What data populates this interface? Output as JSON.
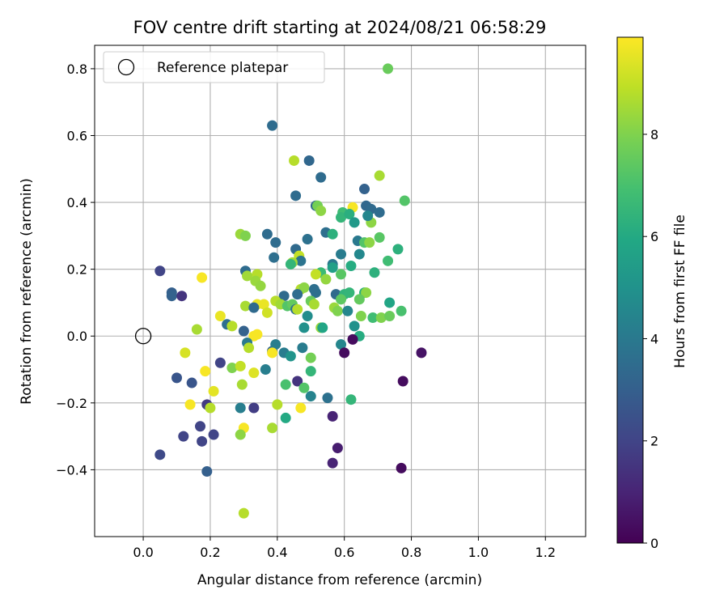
{
  "chart_data": {
    "type": "scatter",
    "title": "FOV centre drift starting at 2024/08/21 06:58:29",
    "xlabel": "Angular distance from reference (arcmin)",
    "ylabel": "Rotation from reference (arcmin)",
    "xlim": [
      -0.145,
      1.32
    ],
    "ylim": [
      -0.6,
      0.87
    ],
    "xticks": [
      0.0,
      0.2,
      0.4,
      0.6,
      0.8,
      1.0,
      1.2
    ],
    "yticks": [
      -0.4,
      -0.2,
      0.0,
      0.2,
      0.4,
      0.6,
      0.8
    ],
    "xtick_labels": [
      "0.0",
      "0.2",
      "0.4",
      "0.6",
      "0.8",
      "1.0",
      "1.2"
    ],
    "ytick_labels": [
      "−0.4",
      "−0.2",
      "0.0",
      "0.2",
      "0.4",
      "0.6",
      "0.8"
    ],
    "grid": true,
    "legend": {
      "position": "top-left",
      "entries": [
        "Reference platepar"
      ]
    },
    "reference_point": {
      "x": 0.0,
      "y": 0.0,
      "label": "Reference platepar"
    },
    "colorbar": {
      "label": "Hours from first FF file",
      "colormap": "viridis",
      "min": 0,
      "max": 9.9,
      "ticks": [
        0,
        2,
        4,
        6,
        8
      ],
      "tick_labels": [
        "0",
        "2",
        "4",
        "6",
        "8"
      ]
    },
    "series": [
      {
        "color_by": "hours",
        "points": [
          [
            0.385,
            0.63,
            3.5
          ],
          [
            0.73,
            0.8,
            7.6
          ],
          [
            0.45,
            0.525,
            8.8
          ],
          [
            0.495,
            0.525,
            3.3
          ],
          [
            0.53,
            0.475,
            3.5
          ],
          [
            0.705,
            0.48,
            8.6
          ],
          [
            0.455,
            0.42,
            3.5
          ],
          [
            0.78,
            0.405,
            7.2
          ],
          [
            0.515,
            0.39,
            3.3
          ],
          [
            0.52,
            0.39,
            7.8
          ],
          [
            0.66,
            0.44,
            3.1
          ],
          [
            0.665,
            0.39,
            3.3
          ],
          [
            0.68,
            0.38,
            3.4
          ],
          [
            0.705,
            0.37,
            3.5
          ],
          [
            0.625,
            0.385,
            9.8
          ],
          [
            0.53,
            0.375,
            8.2
          ],
          [
            0.595,
            0.37,
            6.8
          ],
          [
            0.59,
            0.355,
            6.5
          ],
          [
            0.615,
            0.365,
            6.2
          ],
          [
            0.63,
            0.34,
            5.3
          ],
          [
            0.68,
            0.34,
            8.2
          ],
          [
            0.67,
            0.36,
            4.5
          ],
          [
            0.37,
            0.305,
            3.5
          ],
          [
            0.545,
            0.31,
            3.6
          ],
          [
            0.565,
            0.305,
            6.3
          ],
          [
            0.29,
            0.305,
            8.4
          ],
          [
            0.305,
            0.3,
            8.0
          ],
          [
            0.395,
            0.28,
            3.5
          ],
          [
            0.49,
            0.29,
            3.7
          ],
          [
            0.64,
            0.285,
            4.0
          ],
          [
            0.66,
            0.28,
            7.2
          ],
          [
            0.675,
            0.28,
            8.2
          ],
          [
            0.705,
            0.295,
            7.3
          ],
          [
            0.76,
            0.26,
            6.3
          ],
          [
            0.455,
            0.26,
            3.4
          ],
          [
            0.59,
            0.245,
            4.1
          ],
          [
            0.645,
            0.245,
            4.6
          ],
          [
            0.39,
            0.235,
            3.6
          ],
          [
            0.465,
            0.24,
            9.0
          ],
          [
            0.47,
            0.225,
            3.8
          ],
          [
            0.445,
            0.22,
            8.5
          ],
          [
            0.44,
            0.215,
            6.5
          ],
          [
            0.73,
            0.225,
            6.8
          ],
          [
            0.565,
            0.215,
            4.0
          ],
          [
            0.565,
            0.205,
            5.6
          ],
          [
            0.62,
            0.21,
            6.1
          ],
          [
            0.69,
            0.19,
            6.3
          ],
          [
            0.53,
            0.19,
            6.7
          ],
          [
            0.515,
            0.185,
            9.0
          ],
          [
            0.59,
            0.185,
            7.3
          ],
          [
            0.05,
            0.195,
            2.0
          ],
          [
            0.175,
            0.175,
            9.8
          ],
          [
            0.305,
            0.195,
            3.5
          ],
          [
            0.34,
            0.185,
            8.8
          ],
          [
            0.31,
            0.18,
            8.5
          ],
          [
            0.335,
            0.165,
            8.4
          ],
          [
            0.35,
            0.15,
            8.3
          ],
          [
            0.47,
            0.14,
            8.8
          ],
          [
            0.48,
            0.145,
            8.2
          ],
          [
            0.51,
            0.14,
            3.6
          ],
          [
            0.545,
            0.17,
            8.3
          ],
          [
            0.42,
            0.12,
            3.4
          ],
          [
            0.46,
            0.125,
            3.5
          ],
          [
            0.515,
            0.13,
            3.6
          ],
          [
            0.575,
            0.125,
            3.4
          ],
          [
            0.6,
            0.125,
            6.4
          ],
          [
            0.615,
            0.13,
            6.5
          ],
          [
            0.66,
            0.13,
            6.2
          ],
          [
            0.665,
            0.13,
            8.2
          ],
          [
            0.645,
            0.11,
            7.5
          ],
          [
            0.59,
            0.11,
            7.4
          ],
          [
            0.085,
            0.13,
            3.0
          ],
          [
            0.085,
            0.12,
            3.1
          ],
          [
            0.115,
            0.12,
            1.5
          ],
          [
            0.34,
            0.095,
            9.6
          ],
          [
            0.36,
            0.095,
            9.6
          ],
          [
            0.305,
            0.09,
            8.6
          ],
          [
            0.33,
            0.085,
            3.4
          ],
          [
            0.37,
            0.07,
            9.2
          ],
          [
            0.395,
            0.105,
            8.8
          ],
          [
            0.41,
            0.095,
            8.5
          ],
          [
            0.43,
            0.09,
            7.2
          ],
          [
            0.445,
            0.095,
            7.5
          ],
          [
            0.455,
            0.08,
            3.6
          ],
          [
            0.46,
            0.08,
            8.8
          ],
          [
            0.5,
            0.105,
            7.6
          ],
          [
            0.51,
            0.095,
            8.6
          ],
          [
            0.49,
            0.06,
            4.8
          ],
          [
            0.57,
            0.085,
            8.4
          ],
          [
            0.58,
            0.075,
            8.0
          ],
          [
            0.61,
            0.075,
            4.5
          ],
          [
            0.65,
            0.06,
            8.0
          ],
          [
            0.685,
            0.055,
            6.8
          ],
          [
            0.71,
            0.055,
            8.0
          ],
          [
            0.735,
            0.06,
            7.6
          ],
          [
            0.735,
            0.1,
            5.8
          ],
          [
            0.77,
            0.075,
            7.0
          ],
          [
            0.16,
            0.02,
            8.6
          ],
          [
            0.23,
            0.06,
            9.6
          ],
          [
            0.25,
            0.035,
            3.6
          ],
          [
            0.265,
            0.03,
            8.8
          ],
          [
            0.3,
            0.015,
            3.1
          ],
          [
            0.33,
            0.0,
            9.8
          ],
          [
            0.34,
            0.005,
            9.8
          ],
          [
            0.48,
            0.025,
            4.9
          ],
          [
            0.53,
            0.025,
            8.4
          ],
          [
            0.535,
            0.025,
            5.8
          ],
          [
            0.63,
            0.03,
            5.0
          ],
          [
            0.645,
            0.0,
            6.1
          ],
          [
            0.625,
            -0.01,
            0.3
          ],
          [
            0.31,
            -0.02,
            4.0
          ],
          [
            0.315,
            -0.035,
            8.8
          ],
          [
            0.385,
            -0.045,
            3.2
          ],
          [
            0.395,
            -0.025,
            4.2
          ],
          [
            0.42,
            -0.05,
            4.1
          ],
          [
            0.385,
            -0.05,
            9.8
          ],
          [
            0.44,
            -0.06,
            5.1
          ],
          [
            0.475,
            -0.035,
            4.1
          ],
          [
            0.5,
            -0.065,
            7.8
          ],
          [
            0.59,
            -0.025,
            4.5
          ],
          [
            0.6,
            -0.05,
            0.3
          ],
          [
            0.83,
            -0.05,
            0.5
          ],
          [
            0.125,
            -0.05,
            9.3
          ],
          [
            0.23,
            -0.08,
            2.0
          ],
          [
            0.265,
            -0.095,
            8.0
          ],
          [
            0.29,
            -0.09,
            9.0
          ],
          [
            0.33,
            -0.11,
            9.4
          ],
          [
            0.365,
            -0.1,
            4.2
          ],
          [
            0.1,
            -0.125,
            2.6
          ],
          [
            0.145,
            -0.14,
            2.6
          ],
          [
            0.185,
            -0.105,
            9.8
          ],
          [
            0.425,
            -0.145,
            7.0
          ],
          [
            0.46,
            -0.135,
            1.5
          ],
          [
            0.5,
            -0.105,
            6.5
          ],
          [
            0.48,
            -0.155,
            7.2
          ],
          [
            0.295,
            -0.145,
            8.6
          ],
          [
            0.21,
            -0.165,
            9.5
          ],
          [
            0.775,
            -0.135,
            0.3
          ],
          [
            0.5,
            -0.18,
            4.4
          ],
          [
            0.55,
            -0.185,
            3.7
          ],
          [
            0.62,
            -0.19,
            6.5
          ],
          [
            0.19,
            -0.205,
            1.7
          ],
          [
            0.14,
            -0.205,
            9.8
          ],
          [
            0.2,
            -0.215,
            8.8
          ],
          [
            0.29,
            -0.215,
            4.2
          ],
          [
            0.33,
            -0.215,
            1.8
          ],
          [
            0.4,
            -0.205,
            8.8
          ],
          [
            0.47,
            -0.215,
            9.8
          ],
          [
            0.425,
            -0.245,
            6.0
          ],
          [
            0.565,
            -0.24,
            1.0
          ],
          [
            0.17,
            -0.27,
            2.0
          ],
          [
            0.3,
            -0.275,
            9.8
          ],
          [
            0.385,
            -0.275,
            8.6
          ],
          [
            0.12,
            -0.3,
            2.0
          ],
          [
            0.175,
            -0.315,
            2.0
          ],
          [
            0.21,
            -0.295,
            2.0
          ],
          [
            0.29,
            -0.295,
            8.2
          ],
          [
            0.58,
            -0.335,
            0.8
          ],
          [
            0.05,
            -0.355,
            2.2
          ],
          [
            0.565,
            -0.38,
            1.0
          ],
          [
            0.19,
            -0.405,
            3.0
          ],
          [
            0.77,
            -0.395,
            0.3
          ],
          [
            0.3,
            -0.53,
            8.8
          ]
        ]
      }
    ]
  }
}
